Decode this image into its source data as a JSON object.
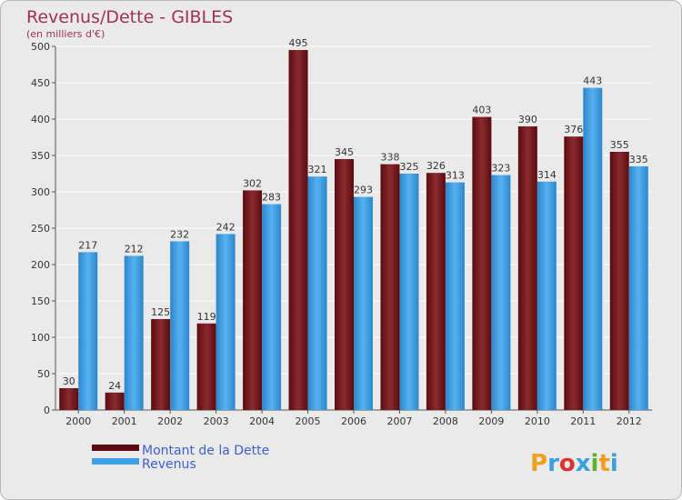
{
  "chart_data": {
    "type": "bar",
    "title": "Revenus/Dette - GIBLES",
    "subtitle": "(en milliers d'€)",
    "categories": [
      "2000",
      "2001",
      "2002",
      "2003",
      "2004",
      "2005",
      "2006",
      "2007",
      "2008",
      "2009",
      "2010",
      "2011",
      "2012"
    ],
    "series": [
      {
        "name": "Montant de la Dette",
        "color": "#7a1a1e",
        "values": [
          30,
          24,
          125,
          119,
          302,
          495,
          345,
          338,
          326,
          403,
          390,
          376,
          355
        ]
      },
      {
        "name": "Revenus",
        "color": "#3d9fe6",
        "values": [
          217,
          212,
          232,
          242,
          283,
          321,
          293,
          325,
          313,
          323,
          314,
          443,
          335
        ]
      }
    ],
    "ylim": [
      0,
      500
    ],
    "yticks": [
      0,
      50,
      100,
      150,
      200,
      250,
      300,
      350,
      400,
      450,
      500
    ],
    "grid": true,
    "legend": "bottom-left"
  },
  "brand": {
    "letters": [
      "P",
      "r",
      "o",
      "x",
      "i",
      "t",
      "i"
    ],
    "colors": [
      "#f0a020",
      "#3aa0e0",
      "#e03030",
      "#3aa0e0",
      "#60b030",
      "#f0a020",
      "#3aa0e0"
    ]
  }
}
